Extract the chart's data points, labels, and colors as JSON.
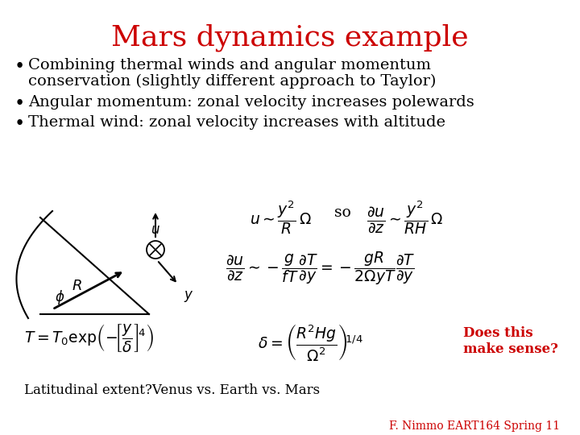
{
  "title": "Mars dynamics example",
  "title_color": "#CC0000",
  "title_fontsize": 26,
  "bullet1a": "Combining thermal winds and angular momentum",
  "bullet1b": "conservation (slightly different approach to Taylor)",
  "bullet2": "Angular momentum: zonal velocity increases polewards",
  "bullet3": "Thermal wind: zonal velocity increases with altitude",
  "does_this": "Does this\nmake sense?",
  "does_this_color": "#CC0000",
  "footer": "F. Nimmo EART164 Spring 11",
  "footer_color": "#CC0000",
  "latitudinal": "Latitudinal extent?Venus vs. Earth vs. Mars",
  "bg_color": "#FFFFFF",
  "text_color": "#000000",
  "bullet_fontsize": 14,
  "eq_fontsize": 13.5
}
